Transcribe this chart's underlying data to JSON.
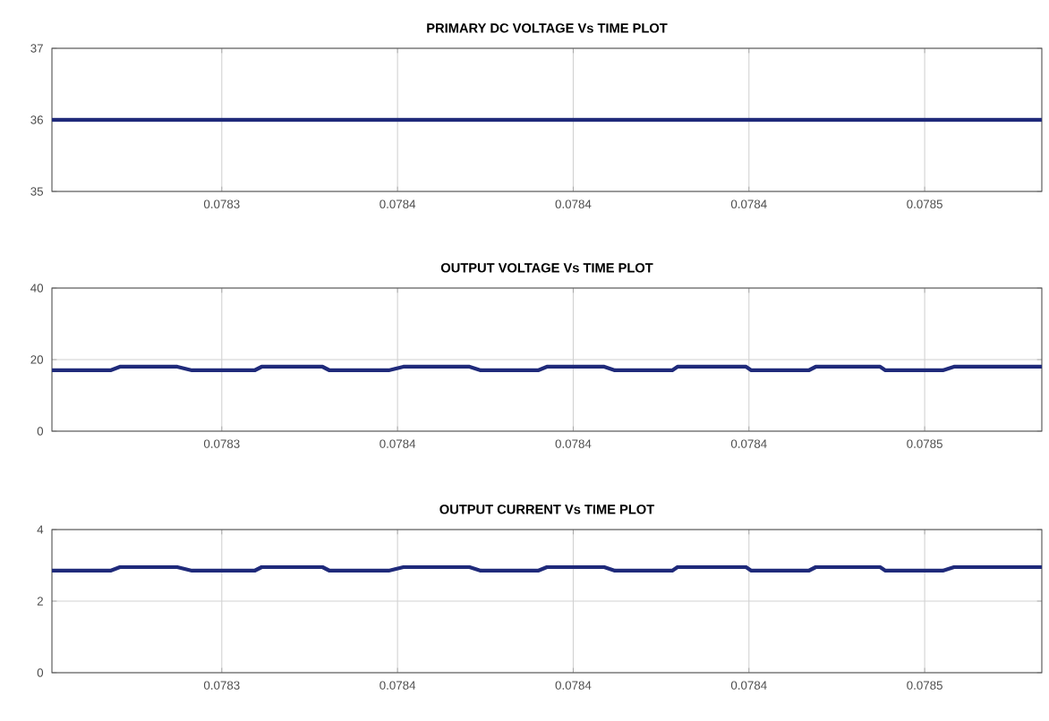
{
  "chart_data": [
    {
      "type": "line",
      "title": "PRIMARY DC VOLTAGE Vs TIME PLOT",
      "x": [
        0.078301,
        0.07847
      ],
      "series": [
        {
          "color": "#1f2a7a",
          "values": [
            36,
            36
          ]
        }
      ],
      "xlim": [
        0.078301,
        0.07847
      ],
      "xticks": [
        {
          "value": 0.07833,
          "label": "0.0783"
        },
        {
          "value": 0.07836,
          "label": "0.0784"
        },
        {
          "value": 0.07839,
          "label": "0.0784"
        },
        {
          "value": 0.07842,
          "label": "0.0784"
        },
        {
          "value": 0.07845,
          "label": "0.0785"
        }
      ],
      "ylim": [
        35,
        37
      ],
      "yticks": [
        35,
        36,
        37
      ],
      "grid": true
    },
    {
      "type": "line",
      "title": "OUTPUT VOLTAGE Vs TIME PLOT",
      "x": [
        0.078301,
        0.078311,
        0.0783126,
        0.0783224,
        0.0783249,
        0.0783356,
        0.0783368,
        0.0783472,
        0.0783484,
        0.0783585,
        0.078361,
        0.0783723,
        0.0783742,
        0.078384,
        0.0783855,
        0.0783953,
        0.0783971,
        0.0784069,
        0.0784078,
        0.0784195,
        0.0784204,
        0.0784302,
        0.0784314,
        0.0784424,
        0.0784433,
        0.0784531,
        0.078455,
        0.07847
      ],
      "series": [
        {
          "color": "#1f2a7a",
          "values": [
            17,
            17,
            18,
            18,
            17,
            17,
            18,
            18,
            17,
            17,
            18,
            18,
            17,
            17,
            18,
            18,
            17,
            17,
            18,
            18,
            17,
            17,
            18,
            18,
            17,
            17,
            18,
            18
          ]
        }
      ],
      "xlim": [
        0.078301,
        0.07847
      ],
      "xticks": [
        {
          "value": 0.07833,
          "label": "0.0783"
        },
        {
          "value": 0.07836,
          "label": "0.0784"
        },
        {
          "value": 0.07839,
          "label": "0.0784"
        },
        {
          "value": 0.07842,
          "label": "0.0784"
        },
        {
          "value": 0.07845,
          "label": "0.0785"
        }
      ],
      "ylim": [
        0,
        40
      ],
      "yticks": [
        0,
        20,
        40
      ],
      "grid": true
    },
    {
      "type": "line",
      "title": "OUTPUT CURRENT Vs TIME PLOT",
      "x": [
        0.078301,
        0.078311,
        0.0783126,
        0.0783224,
        0.0783249,
        0.0783356,
        0.0783368,
        0.0783472,
        0.0783484,
        0.0783585,
        0.078361,
        0.0783723,
        0.0783742,
        0.078384,
        0.0783855,
        0.0783953,
        0.0783971,
        0.0784069,
        0.0784078,
        0.0784195,
        0.0784204,
        0.0784302,
        0.0784314,
        0.0784424,
        0.0784433,
        0.0784531,
        0.078455,
        0.07847
      ],
      "series": [
        {
          "color": "#1f2a7a",
          "values": [
            2.85,
            2.85,
            2.95,
            2.95,
            2.85,
            2.85,
            2.95,
            2.95,
            2.85,
            2.85,
            2.95,
            2.95,
            2.85,
            2.85,
            2.95,
            2.95,
            2.85,
            2.85,
            2.95,
            2.95,
            2.85,
            2.85,
            2.95,
            2.95,
            2.85,
            2.85,
            2.95,
            2.95
          ]
        }
      ],
      "xlim": [
        0.078301,
        0.07847
      ],
      "xticks": [
        {
          "value": 0.07833,
          "label": "0.0783"
        },
        {
          "value": 0.07836,
          "label": "0.0784"
        },
        {
          "value": 0.07839,
          "label": "0.0784"
        },
        {
          "value": 0.07842,
          "label": "0.0784"
        },
        {
          "value": 0.07845,
          "label": "0.0785"
        }
      ],
      "ylim": [
        0,
        4
      ],
      "yticks": [
        0,
        2,
        4
      ],
      "grid": true
    }
  ]
}
